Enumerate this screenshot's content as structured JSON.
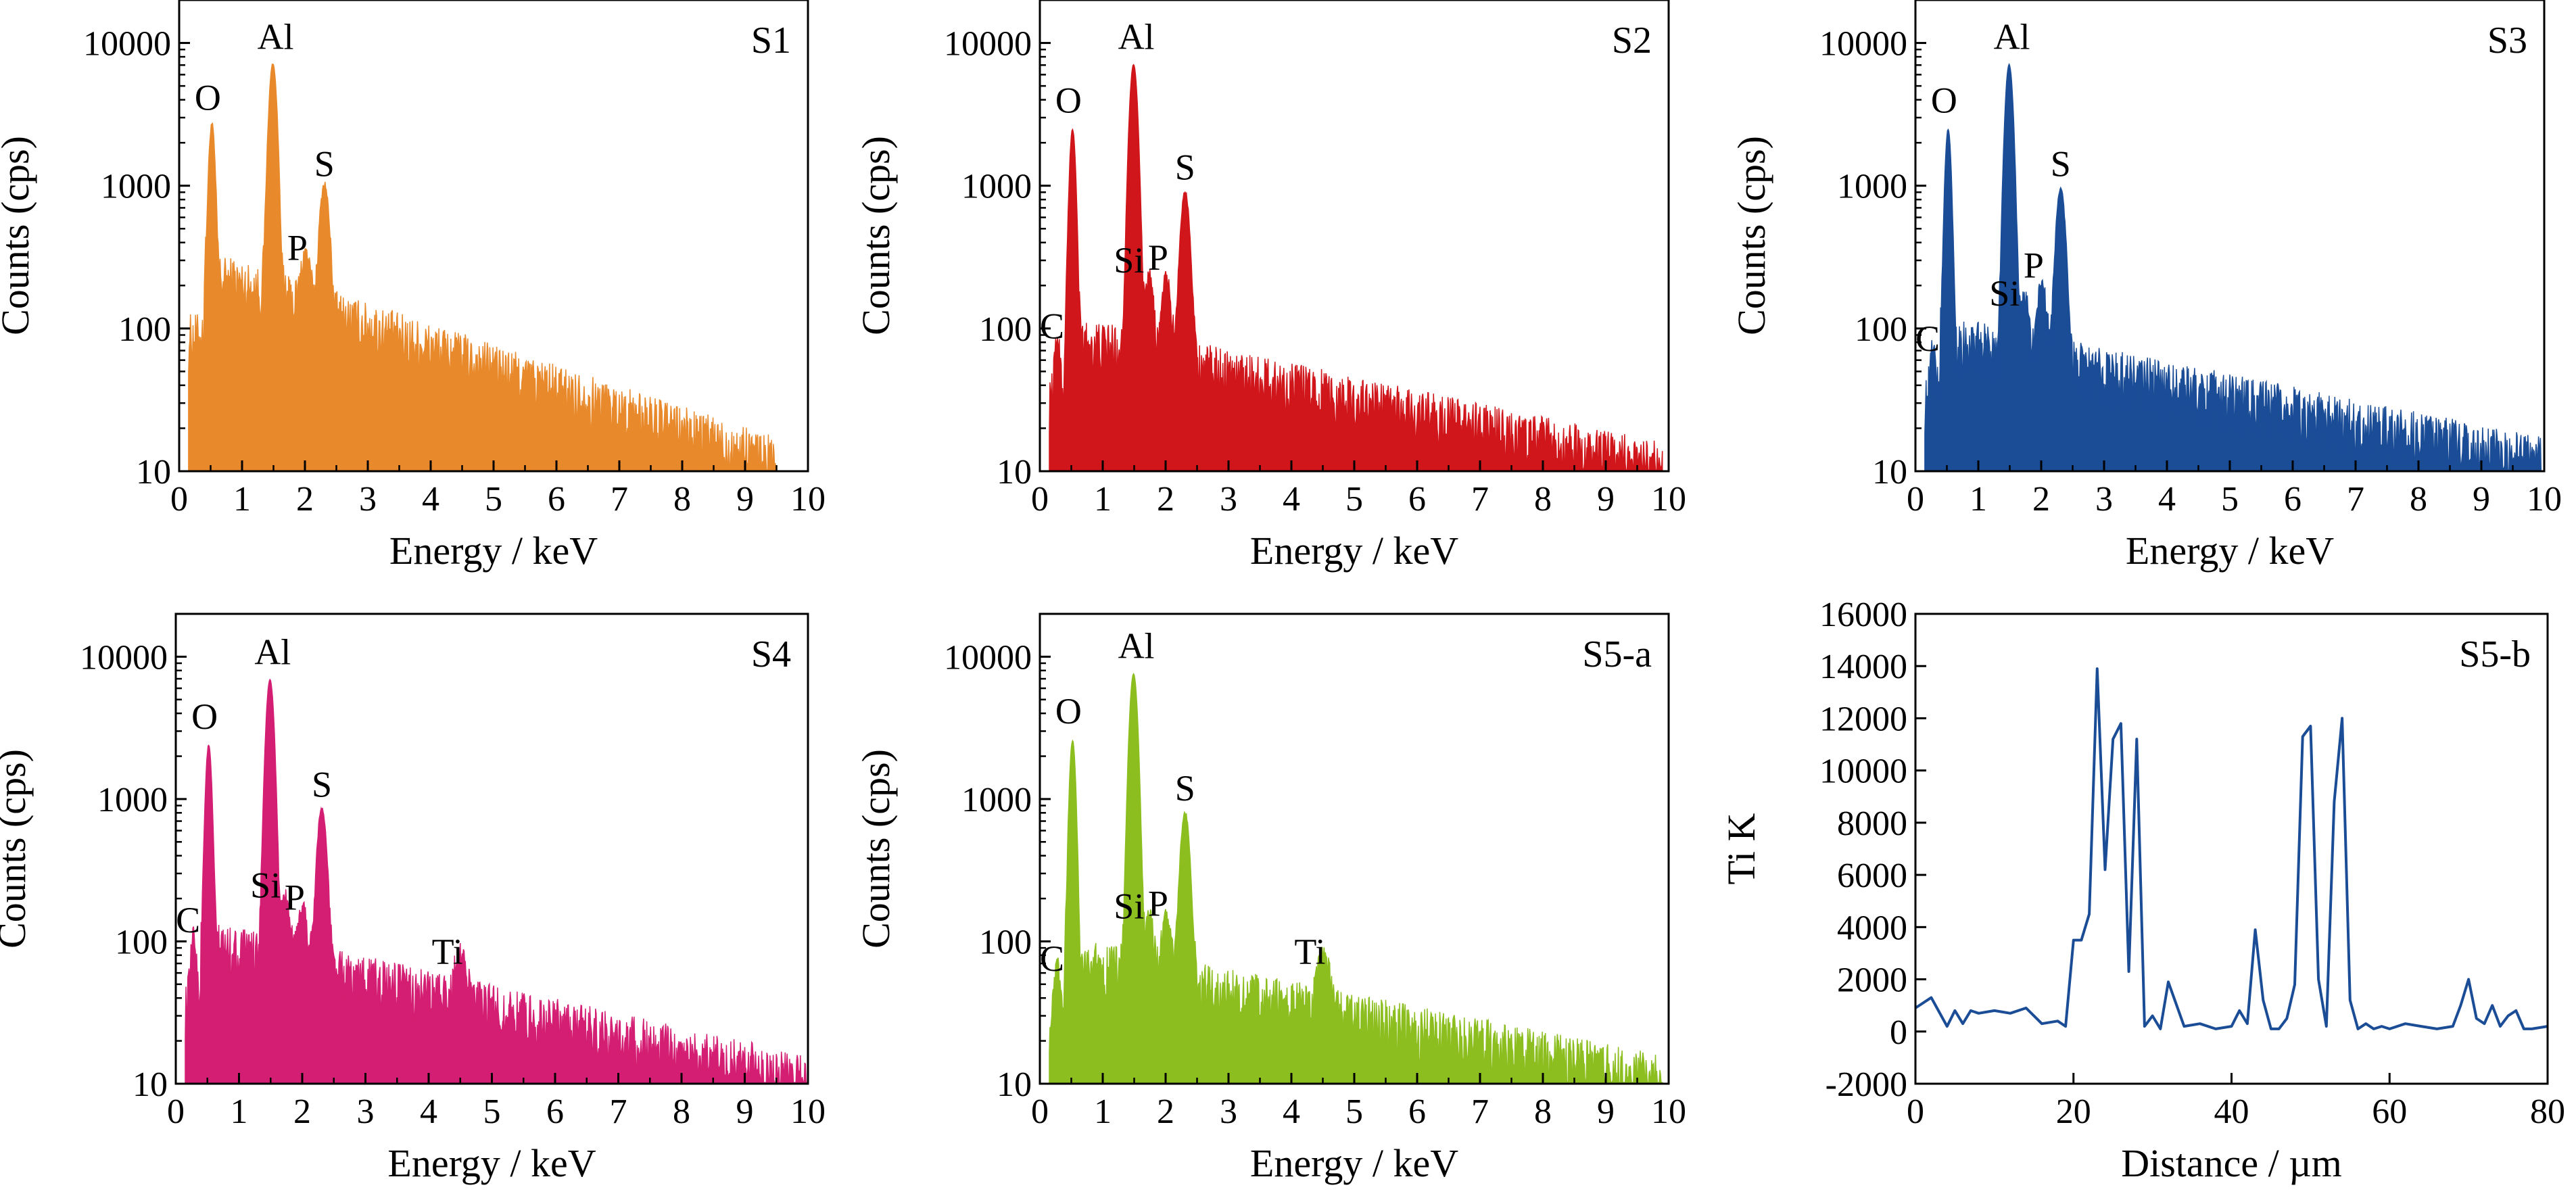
{
  "figure": {
    "title": "",
    "panels_layout": "2 rows x 3 columns"
  },
  "chart_data": [
    {
      "type": "area",
      "panel": "S1",
      "color": "#E8892B",
      "xlabel": "Energy / keV",
      "ylabel": "Counts (cps)",
      "xlim": [
        0,
        10
      ],
      "ylim": [
        10,
        20000
      ],
      "yscale": "log",
      "x_ticks": [
        "0",
        "1",
        "2",
        "3",
        "4",
        "5",
        "6",
        "7",
        "8",
        "9",
        "10"
      ],
      "y_ticks": [
        "10",
        "100",
        "1000",
        "10000"
      ],
      "spectrum_end_keV": 9.5,
      "background": {
        "start": 220,
        "end": 12
      },
      "peaks": [
        {
          "label": "O",
          "energy": 0.52,
          "counts": 2500
        },
        {
          "label": "Al",
          "energy": 1.49,
          "counts": 7000
        },
        {
          "label": "P",
          "energy": 2.01,
          "counts": 200
        },
        {
          "label": "S",
          "energy": 2.31,
          "counts": 900
        }
      ]
    },
    {
      "type": "area",
      "panel": "S2",
      "color": "#D0161B",
      "xlabel": "Energy / keV",
      "ylabel": "Counts (cps)",
      "xlim": [
        0,
        10
      ],
      "ylim": [
        10,
        20000
      ],
      "yscale": "log",
      "x_ticks": [
        "0",
        "1",
        "2",
        "3",
        "4",
        "5",
        "6",
        "7",
        "8",
        "9",
        "10"
      ],
      "y_ticks": [
        "10",
        "100",
        "1000",
        "10000"
      ],
      "spectrum_end_keV": 9.9,
      "background": {
        "start": 80,
        "end": 11
      },
      "peaks": [
        {
          "label": "C",
          "energy": 0.28,
          "counts": 55
        },
        {
          "label": "O",
          "energy": 0.52,
          "counts": 2400
        },
        {
          "label": "Al",
          "energy": 1.49,
          "counts": 7000
        },
        {
          "label": "Si",
          "energy": 1.74,
          "counts": 170
        },
        {
          "label": "P",
          "energy": 2.01,
          "counts": 170
        },
        {
          "label": "S",
          "energy": 2.31,
          "counts": 850
        }
      ]
    },
    {
      "type": "area",
      "panel": "S3",
      "color": "#1B4D97",
      "xlabel": "Energy / keV",
      "ylabel": "Counts (cps)",
      "xlim": [
        0,
        10
      ],
      "ylim": [
        10,
        20000
      ],
      "yscale": "log",
      "x_ticks": [
        "0",
        "1",
        "2",
        "3",
        "4",
        "5",
        "6",
        "7",
        "8",
        "9",
        "10"
      ],
      "y_ticks": [
        "10",
        "100",
        "1000",
        "10000"
      ],
      "spectrum_end_keV": 9.95,
      "background": {
        "start": 80,
        "end": 12
      },
      "peaks": [
        {
          "label": "C",
          "energy": 0.28,
          "counts": 45
        },
        {
          "label": "O",
          "energy": 0.52,
          "counts": 2400
        },
        {
          "label": "Al",
          "energy": 1.49,
          "counts": 7000
        },
        {
          "label": "Si",
          "energy": 1.74,
          "counts": 100
        },
        {
          "label": "P",
          "energy": 2.01,
          "counts": 150
        },
        {
          "label": "S",
          "energy": 2.31,
          "counts": 900
        }
      ]
    },
    {
      "type": "area",
      "panel": "S4",
      "color": "#D41E73",
      "xlabel": "Energy / keV",
      "ylabel": "Counts (cps)",
      "xlim": [
        0,
        10
      ],
      "ylim": [
        10,
        20000
      ],
      "yscale": "log",
      "x_ticks": [
        "0",
        "1",
        "2",
        "3",
        "4",
        "5",
        "6",
        "7",
        "8",
        "9",
        "10"
      ],
      "y_ticks": [
        "10",
        "100",
        "1000",
        "10000"
      ],
      "spectrum_end_keV": 10.0,
      "background": {
        "start": 90,
        "end": 11
      },
      "peaks": [
        {
          "label": "C",
          "energy": 0.28,
          "counts": 75
        },
        {
          "label": "O",
          "energy": 0.52,
          "counts": 2300
        },
        {
          "label": "Al",
          "energy": 1.49,
          "counts": 6800
        },
        {
          "label": "Si",
          "energy": 1.74,
          "counts": 140
        },
        {
          "label": "P",
          "energy": 2.01,
          "counts": 110
        },
        {
          "label": "S",
          "energy": 2.31,
          "counts": 800
        },
        {
          "label": "Ti",
          "energy": 4.51,
          "counts": 45
        }
      ]
    },
    {
      "type": "area",
      "panel": "S5-a",
      "color": "#8BBE1E",
      "xlabel": "Energy / keV",
      "ylabel": "Counts (cps)",
      "xlim": [
        0,
        10
      ],
      "ylim": [
        10,
        20000
      ],
      "yscale": "log",
      "x_ticks": [
        "0",
        "1",
        "2",
        "3",
        "4",
        "5",
        "6",
        "7",
        "8",
        "9",
        "10"
      ],
      "y_ticks": [
        "10",
        "100",
        "1000",
        "10000"
      ],
      "spectrum_end_keV": 9.9,
      "background": {
        "start": 70,
        "end": 11
      },
      "peaks": [
        {
          "label": "C",
          "energy": 0.28,
          "counts": 40
        },
        {
          "label": "O",
          "energy": 0.52,
          "counts": 2500
        },
        {
          "label": "Al",
          "energy": 1.49,
          "counts": 7500
        },
        {
          "label": "Si",
          "energy": 1.74,
          "counts": 100
        },
        {
          "label": "P",
          "energy": 2.01,
          "counts": 100
        },
        {
          "label": "S",
          "energy": 2.31,
          "counts": 750
        },
        {
          "label": "Ti",
          "energy": 4.51,
          "counts": 45
        }
      ]
    },
    {
      "type": "line",
      "panel": "S5-b",
      "color": "#1B4D97",
      "xlabel": "Distance / µm",
      "ylabel": "Ti K",
      "xlim": [
        0,
        80
      ],
      "ylim": [
        -2000,
        16000
      ],
      "yscale": "linear",
      "x_ticks": [
        "0",
        "20",
        "40",
        "60",
        "80"
      ],
      "y_ticks": [
        "-2000",
        "0",
        "2000",
        "4000",
        "6000",
        "8000",
        "10000",
        "12000",
        "14000",
        "16000"
      ],
      "x": [
        0,
        2,
        4,
        5,
        6,
        7,
        8,
        10,
        12,
        14,
        16,
        18,
        19,
        20,
        21,
        22,
        23,
        24,
        25,
        26,
        27,
        28,
        29,
        30,
        31,
        32,
        34,
        36,
        38,
        40,
        41,
        42,
        43,
        44,
        45,
        46,
        47,
        48,
        49,
        50,
        51,
        52,
        53,
        54,
        55,
        56,
        57,
        58,
        59,
        60,
        62,
        64,
        66,
        68,
        69,
        70,
        71,
        72,
        73,
        74,
        75,
        76,
        77,
        78,
        80
      ],
      "y": [
        900,
        1300,
        200,
        800,
        300,
        800,
        700,
        800,
        700,
        900,
        300,
        400,
        200,
        3500,
        3500,
        4500,
        13900,
        6200,
        11200,
        11800,
        2300,
        11200,
        200,
        600,
        100,
        1900,
        200,
        300,
        100,
        200,
        800,
        300,
        3900,
        1200,
        100,
        100,
        500,
        1800,
        11300,
        11700,
        2000,
        200,
        8800,
        12000,
        1200,
        100,
        300,
        100,
        200,
        100,
        300,
        200,
        100,
        200,
        1000,
        2000,
        500,
        300,
        1000,
        200,
        600,
        800,
        100,
        100,
        200
      ]
    }
  ]
}
